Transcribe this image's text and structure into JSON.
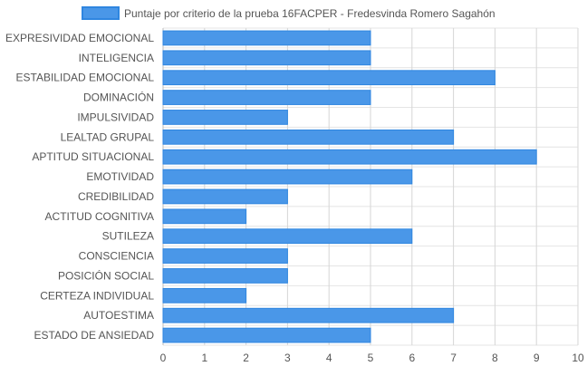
{
  "chart_data": {
    "type": "bar",
    "orientation": "horizontal",
    "categories": [
      "EXPRESIVIDAD EMOCIONAL",
      "INTELIGENCIA",
      "ESTABILIDAD EMOCIONAL",
      "DOMINACIÓN",
      "IMPULSIVIDAD",
      "LEALTAD GRUPAL",
      "APTITUD SITUACIONAL",
      "EMOTIVIDAD",
      "CREDIBILIDAD",
      "ACTITUD COGNITIVA",
      "SUTILEZA",
      "CONSCIENCIA",
      "POSICIÓN SOCIAL",
      "CERTEZA INDIVIDUAL",
      "AUTOESTIMA",
      "ESTADO DE ANSIEDAD"
    ],
    "series": [
      {
        "name": "Puntaje por criterio de la prueba 16FACPER - Fredesvinda Romero Sagahón",
        "values": [
          5,
          5,
          8,
          5,
          3,
          7,
          9,
          6,
          3,
          2,
          6,
          3,
          3,
          2,
          7,
          5
        ],
        "color": "#4a97e8",
        "border_color": "#2f86e0"
      }
    ],
    "xlim": [
      0,
      10
    ],
    "xticks": [
      "0",
      "1",
      "2",
      "3",
      "4",
      "5",
      "6",
      "7",
      "8",
      "9",
      "10"
    ],
    "grid": true,
    "legend_position": "top"
  }
}
